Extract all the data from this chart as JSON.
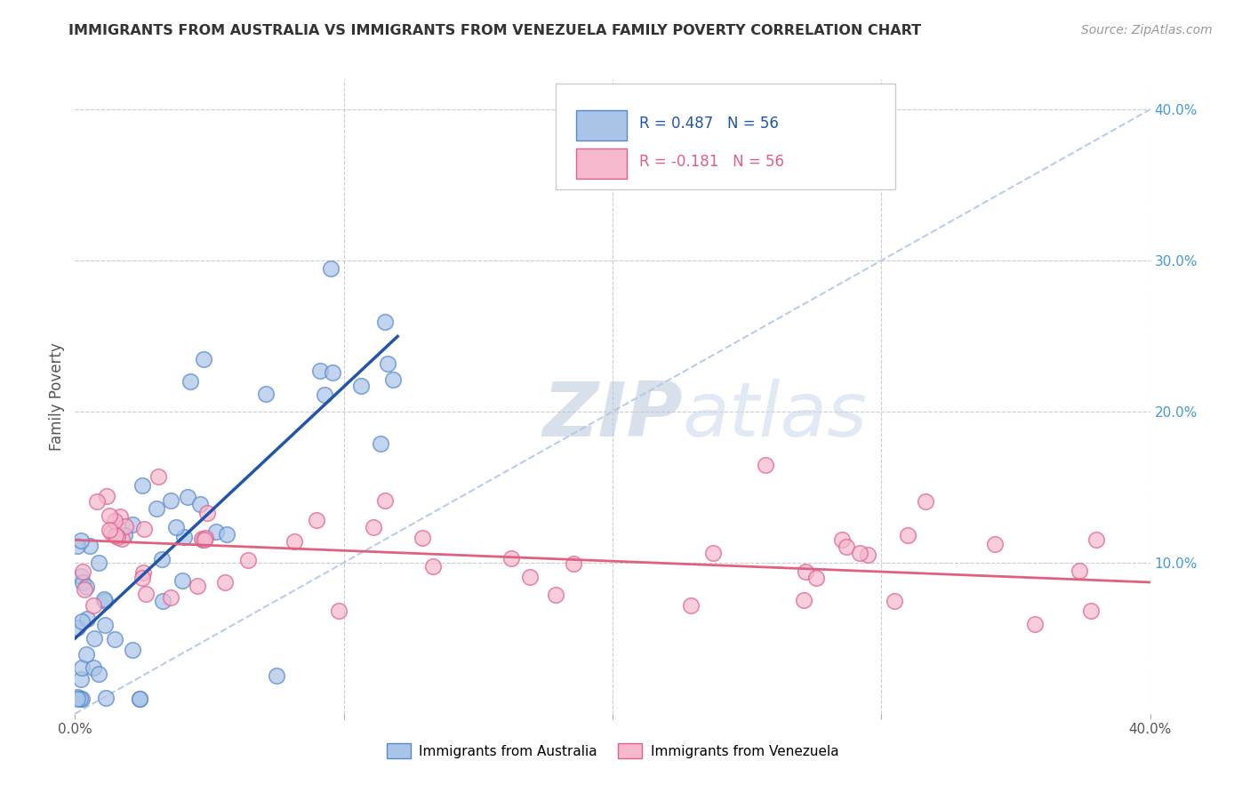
{
  "title": "IMMIGRANTS FROM AUSTRALIA VS IMMIGRANTS FROM VENEZUELA FAMILY POVERTY CORRELATION CHART",
  "source": "Source: ZipAtlas.com",
  "ylabel": "Family Poverty",
  "xlim": [
    0.0,
    0.4
  ],
  "ylim": [
    0.0,
    0.42
  ],
  "australia_color": "#aac4e8",
  "venezuela_color": "#f5b8cc",
  "australia_edge": "#5588cc",
  "venezuela_edge": "#e06090",
  "trend_australia_color": "#2255aa",
  "trend_venezuela_color": "#e06080",
  "trend_diagonal_color": "#b8ccee",
  "background_color": "#ffffff",
  "grid_color": "#cccccc",
  "watermark_zip": "ZIP",
  "watermark_atlas": "atlas",
  "watermark_color": "#ccd8ec",
  "right_tick_color": "#4499dd",
  "title_color": "#333333",
  "source_color": "#999999",
  "ylabel_color": "#555555"
}
